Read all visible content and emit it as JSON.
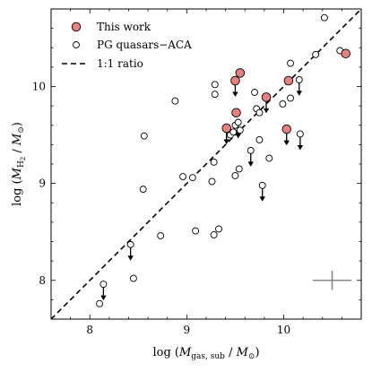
{
  "chart_data": {
    "type": "scatter",
    "title": "",
    "xlabel": {
      "prefix": "log (",
      "var": "M",
      "sub": "gas, sub",
      "mid": " / ",
      "unit": "M",
      "unit_sub": "⊙",
      "suffix": ")"
    },
    "ylabel": {
      "prefix": "log (",
      "var": "M",
      "sub": "H",
      "subsub": "2",
      "mid": " / ",
      "unit": "M",
      "unit_sub": "⊙",
      "suffix": ")"
    },
    "xlim": [
      7.6,
      10.8
    ],
    "ylim": [
      7.6,
      10.8
    ],
    "xticks": [
      8,
      9,
      10
    ],
    "yticks": [
      8,
      9,
      10
    ],
    "xtick_labels": [
      "8",
      "9",
      "10"
    ],
    "ytick_labels": [
      "8",
      "9",
      "10"
    ],
    "grid": false,
    "legend_position": "top-left",
    "legend": [
      {
        "label": "This work",
        "marker": "filled-circle"
      },
      {
        "label": "PG quasars−ACA",
        "marker": "open-circle"
      },
      {
        "label": "1:1 ratio",
        "marker": "dashed-line"
      }
    ],
    "reference_line": {
      "name": "1:1 ratio",
      "slope": 1,
      "intercept": 0
    },
    "colors": {
      "this_work_fill": "#e88080",
      "marker_edge": "#000000",
      "error_bar": "#888888"
    },
    "error_bar": {
      "center": [
        10.5,
        8.0
      ],
      "x_half": 0.2,
      "y_half": 0.1
    },
    "series": [
      {
        "name": "This work",
        "points": [
          {
            "x": 9.55,
            "y": 10.14,
            "upper_limit": false
          },
          {
            "x": 9.5,
            "y": 10.06,
            "upper_limit": true
          },
          {
            "x": 9.82,
            "y": 9.89,
            "upper_limit": true
          },
          {
            "x": 10.05,
            "y": 10.06,
            "upper_limit": false
          },
          {
            "x": 10.64,
            "y": 10.34,
            "upper_limit": false
          },
          {
            "x": 9.51,
            "y": 9.73,
            "upper_limit": false
          },
          {
            "x": 9.41,
            "y": 9.57,
            "upper_limit": true
          },
          {
            "x": 10.03,
            "y": 9.56,
            "upper_limit": true
          }
        ]
      },
      {
        "name": "PG quasars−ACA",
        "points": [
          {
            "x": 10.42,
            "y": 10.71,
            "upper_limit": false
          },
          {
            "x": 10.33,
            "y": 10.33,
            "upper_limit": false
          },
          {
            "x": 10.58,
            "y": 10.37,
            "upper_limit": false
          },
          {
            "x": 10.07,
            "y": 10.24,
            "upper_limit": false
          },
          {
            "x": 9.29,
            "y": 10.02,
            "upper_limit": false
          },
          {
            "x": 9.29,
            "y": 9.92,
            "upper_limit": false
          },
          {
            "x": 10.16,
            "y": 10.07,
            "upper_limit": true
          },
          {
            "x": 9.7,
            "y": 9.94,
            "upper_limit": false
          },
          {
            "x": 8.88,
            "y": 9.85,
            "upper_limit": false
          },
          {
            "x": 9.99,
            "y": 9.82,
            "upper_limit": false
          },
          {
            "x": 9.72,
            "y": 9.77,
            "upper_limit": false
          },
          {
            "x": 10.07,
            "y": 9.88,
            "upper_limit": false
          },
          {
            "x": 9.75,
            "y": 9.73,
            "upper_limit": false
          },
          {
            "x": 9.5,
            "y": 9.6,
            "upper_limit": false
          },
          {
            "x": 9.53,
            "y": 9.63,
            "upper_limit": true
          },
          {
            "x": 9.55,
            "y": 9.55,
            "upper_limit": false
          },
          {
            "x": 9.45,
            "y": 9.5,
            "upper_limit": false
          },
          {
            "x": 9.48,
            "y": 9.53,
            "upper_limit": false
          },
          {
            "x": 10.17,
            "y": 9.51,
            "upper_limit": true
          },
          {
            "x": 9.75,
            "y": 9.45,
            "upper_limit": false
          },
          {
            "x": 8.56,
            "y": 9.49,
            "upper_limit": false
          },
          {
            "x": 9.66,
            "y": 9.34,
            "upper_limit": true
          },
          {
            "x": 9.85,
            "y": 9.26,
            "upper_limit": false
          },
          {
            "x": 9.28,
            "y": 9.22,
            "upper_limit": false
          },
          {
            "x": 9.54,
            "y": 9.15,
            "upper_limit": false
          },
          {
            "x": 9.5,
            "y": 9.08,
            "upper_limit": false
          },
          {
            "x": 8.96,
            "y": 9.07,
            "upper_limit": false
          },
          {
            "x": 9.06,
            "y": 9.06,
            "upper_limit": false
          },
          {
            "x": 9.26,
            "y": 9.02,
            "upper_limit": false
          },
          {
            "x": 9.78,
            "y": 8.98,
            "upper_limit": true
          },
          {
            "x": 8.55,
            "y": 8.94,
            "upper_limit": false
          },
          {
            "x": 9.09,
            "y": 8.51,
            "upper_limit": false
          },
          {
            "x": 9.33,
            "y": 8.53,
            "upper_limit": false
          },
          {
            "x": 9.28,
            "y": 8.47,
            "upper_limit": false
          },
          {
            "x": 8.73,
            "y": 8.46,
            "upper_limit": false
          },
          {
            "x": 8.42,
            "y": 8.37,
            "upper_limit": true
          },
          {
            "x": 8.45,
            "y": 8.02,
            "upper_limit": false
          },
          {
            "x": 8.14,
            "y": 7.96,
            "upper_limit": true
          },
          {
            "x": 8.1,
            "y": 7.76,
            "upper_limit": false
          }
        ]
      }
    ]
  }
}
